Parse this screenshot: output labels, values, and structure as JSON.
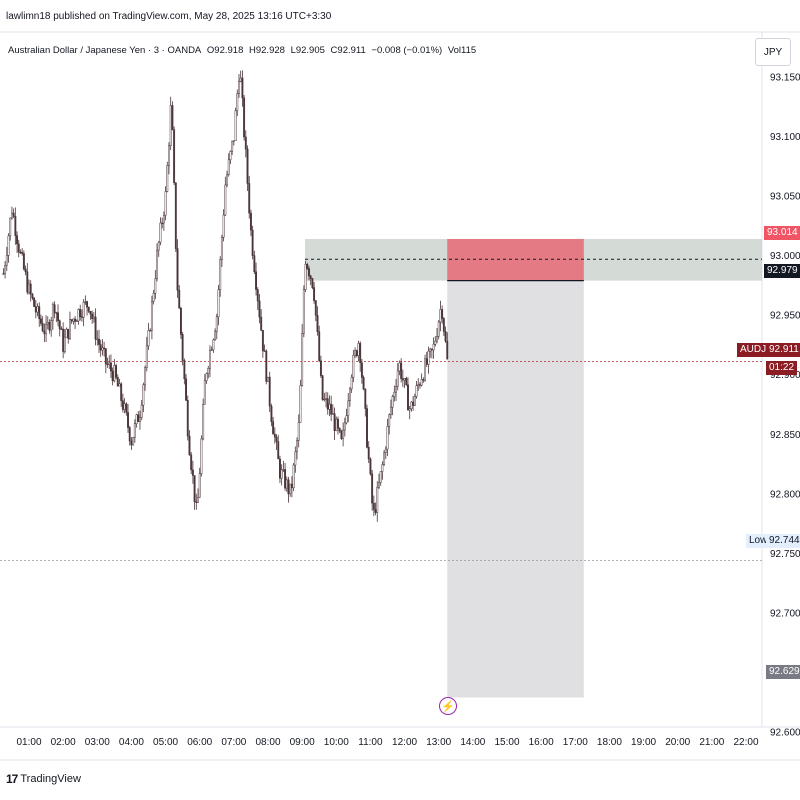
{
  "header": {
    "publish_text": "lawlimn18 published on TradingView.com, May 28, 2025 13:16 UTC+3:30"
  },
  "legend": {
    "symbol": "Australian Dollar / Japanese Yen · 3 · OANDA",
    "open": "O92.918",
    "high": "H92.928",
    "low": "L92.905",
    "close": "C92.911",
    "change": "−0.008 (−0.01%)",
    "volume": "Vol115"
  },
  "currency_button": "JPY",
  "price_tags": {
    "stop": "93.014",
    "entry": "92.979",
    "symbol_label": "AUDJPY",
    "last_price": "92.911",
    "countdown": "01:22",
    "low_label": "Low",
    "low_value": "92.744",
    "target": "92.629"
  },
  "footer": {
    "brand": "TradingView"
  },
  "colors": {
    "candle": "#4a3538",
    "stop_zone": "#e57580",
    "target_zone": "#d5d6da",
    "supply_zone": "#c5cfca",
    "last_price": "#8b1c24"
  },
  "chart_data": {
    "type": "candlestick",
    "symbol": "AUDJPY",
    "interval": "3",
    "y_ticks": [
      93.15,
      93.1,
      93.05,
      93.0,
      92.95,
      92.9,
      92.85,
      92.8,
      92.75,
      92.7,
      92.65,
      92.6
    ],
    "x_ticks": [
      "01:00",
      "02:00",
      "03:00",
      "04:00",
      "05:00",
      "06:00",
      "07:00",
      "08:00",
      "09:00",
      "10:00",
      "11:00",
      "12:00",
      "13:00",
      "14:00",
      "15:00",
      "16:00",
      "17:00",
      "18:00",
      "19:00",
      "20:00",
      "21:00",
      "22:00"
    ],
    "ylim": [
      92.58,
      93.17
    ],
    "close_path": [
      [
        "00:15",
        92.985
      ],
      [
        "00:30",
        93.04
      ],
      [
        "00:45",
        93.0
      ],
      [
        "01:00",
        92.97
      ],
      [
        "01:15",
        92.95
      ],
      [
        "01:30",
        92.935
      ],
      [
        "01:45",
        92.96
      ],
      [
        "02:00",
        92.925
      ],
      [
        "02:15",
        92.945
      ],
      [
        "02:30",
        92.955
      ],
      [
        "02:45",
        92.96
      ],
      [
        "03:00",
        92.93
      ],
      [
        "03:15",
        92.91
      ],
      [
        "03:30",
        92.9
      ],
      [
        "03:45",
        92.875
      ],
      [
        "04:00",
        92.845
      ],
      [
        "04:15",
        92.87
      ],
      [
        "04:30",
        92.93
      ],
      [
        "04:45",
        93.0
      ],
      [
        "05:00",
        93.05
      ],
      [
        "05:10",
        93.13
      ],
      [
        "05:20",
        92.98
      ],
      [
        "05:40",
        92.85
      ],
      [
        "05:55",
        92.78
      ],
      [
        "06:10",
        92.9
      ],
      [
        "06:30",
        92.95
      ],
      [
        "06:45",
        93.06
      ],
      [
        "07:00",
        93.1
      ],
      [
        "07:10",
        93.16
      ],
      [
        "07:30",
        93.02
      ],
      [
        "07:50",
        92.93
      ],
      [
        "08:05",
        92.87
      ],
      [
        "08:20",
        92.82
      ],
      [
        "08:40",
        92.8
      ],
      [
        "08:55",
        92.86
      ],
      [
        "09:05",
        93.0
      ],
      [
        "09:20",
        92.975
      ],
      [
        "09:35",
        92.88
      ],
      [
        "09:50",
        92.87
      ],
      [
        "10:10",
        92.84
      ],
      [
        "10:25",
        92.9
      ],
      [
        "10:40",
        92.93
      ],
      [
        "10:55",
        92.84
      ],
      [
        "11:05",
        92.78
      ],
      [
        "11:20",
        92.82
      ],
      [
        "11:35",
        92.87
      ],
      [
        "11:50",
        92.91
      ],
      [
        "12:10",
        92.87
      ],
      [
        "12:30",
        92.9
      ],
      [
        "12:50",
        92.92
      ],
      [
        "13:05",
        92.96
      ],
      [
        "13:15",
        92.911
      ]
    ],
    "high": 93.17,
    "low": 92.744,
    "last_price": 92.911,
    "position": {
      "type": "short",
      "entry": 92.979,
      "stop": 93.014,
      "target": 92.629,
      "start_time": "13:15",
      "end_time": "17:15"
    },
    "supply_zone": {
      "top": 93.014,
      "bottom": 92.979,
      "dashed_mid": 92.997,
      "start_time": "09:05"
    }
  }
}
